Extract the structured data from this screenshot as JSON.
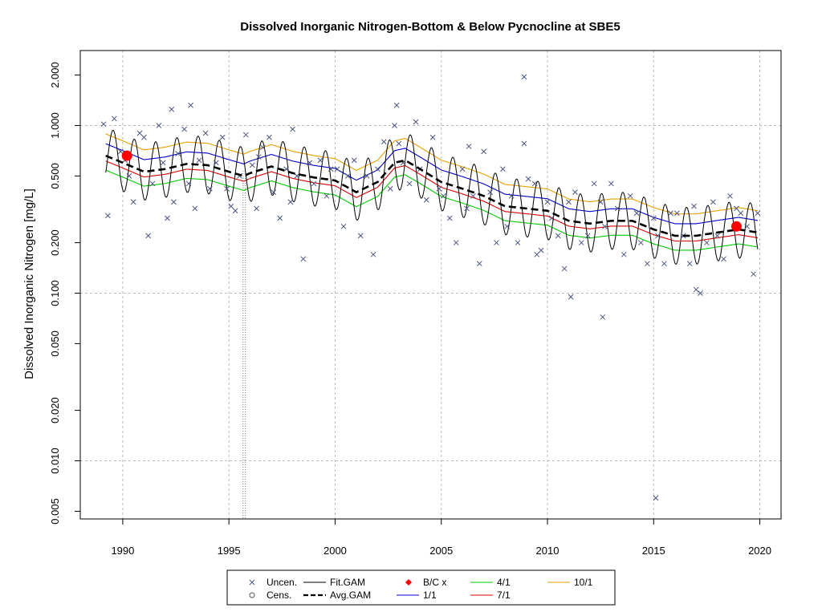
{
  "chart_data": {
    "type": "scatter",
    "title": "Dissolved Inorganic Nitrogen-Bottom & Below Pycnocline at SBE5",
    "xlabel": "",
    "ylabel": "Dissolved Inorganic Nitrogen [mg/L]",
    "xlim": [
      1988,
      2021
    ],
    "ylim": [
      0.0045,
      2.8
    ],
    "y_scale": "log",
    "x_ticks": [
      1990,
      1995,
      2000,
      2005,
      2010,
      2015,
      2020
    ],
    "x_tick_labels": [
      "1990",
      "1995",
      "2000",
      "2005",
      "2010",
      "2015",
      "2020"
    ],
    "y_ticks": [
      0.005,
      0.01,
      0.02,
      0.05,
      0.1,
      0.2,
      0.5,
      1.0,
      2.0
    ],
    "y_tick_labels": [
      "0.005",
      "0.010",
      "0.020",
      "0.050",
      "0.100",
      "0.200",
      "0.500",
      "1.000",
      "2.000"
    ],
    "grid_x": [
      1990,
      1995,
      2000,
      2005,
      2010,
      2015,
      2020
    ],
    "grid_y": [
      0.01,
      0.1,
      1.0
    ],
    "vline_x": 1995.72,
    "colors": {
      "uncensored": "#4d5580",
      "fit_gam": "#000000",
      "avg_gam": "#000000",
      "bc": "#ff0000",
      "d1_1": "#0000cd",
      "d4_1": "#00cc00",
      "d7_1": "#dd0000",
      "d10_1": "#e69f00",
      "grid": "#bbbbbb"
    },
    "avg_gam": {
      "x": [
        1989.2,
        1990,
        1991,
        1992,
        1993,
        1994,
        1995,
        1995.7,
        1996,
        1997,
        1998,
        1999,
        2000,
        2001,
        2002,
        2002.8,
        2003.3,
        2004,
        2005,
        2006,
        2007,
        2008,
        2009,
        2010,
        2011,
        2012,
        2013,
        2014,
        2015,
        2016,
        2017,
        2018,
        2019,
        2019.9
      ],
      "y": [
        0.66,
        0.6,
        0.53,
        0.55,
        0.59,
        0.58,
        0.53,
        0.5,
        0.52,
        0.57,
        0.52,
        0.49,
        0.47,
        0.4,
        0.46,
        0.6,
        0.62,
        0.55,
        0.46,
        0.42,
        0.38,
        0.33,
        0.32,
        0.31,
        0.27,
        0.26,
        0.27,
        0.27,
        0.24,
        0.22,
        0.22,
        0.23,
        0.24,
        0.23
      ]
    },
    "seasonal_offsets": {
      "series": [
        "1/1",
        "4/1",
        "7/1",
        "10/1"
      ],
      "ratio_vs_avg": [
        1.18,
        0.82,
        0.93,
        1.35
      ],
      "fit_gam_amplitude_log10": 0.17
    },
    "bc_points": [
      {
        "x": 1990.2,
        "y": 0.66
      },
      {
        "x": 2018.9,
        "y": 0.25
      }
    ],
    "uncensored": {
      "x": [
        1989.1,
        1989.3,
        1989.6,
        1989.9,
        1990.1,
        1990.3,
        1990.5,
        1990.8,
        1991.0,
        1991.2,
        1991.4,
        1991.7,
        1991.9,
        1992.1,
        1992.4,
        1992.6,
        1992.9,
        1993.1,
        1993.4,
        1993.6,
        1993.9,
        1994.1,
        1994.4,
        1994.7,
        1994.9,
        1995.1,
        1995.3,
        1995.5,
        1995.8,
        1996.1,
        1996.3,
        1996.6,
        1996.9,
        1997.1,
        1997.4,
        1997.7,
        1998.0,
        1998.2,
        1998.5,
        1998.8,
        1999.0,
        1999.3,
        1999.6,
        1999.8,
        2000.1,
        2000.4,
        2000.6,
        2000.9,
        2001.2,
        2001.5,
        2001.8,
        2002.0,
        2002.3,
        2002.6,
        2002.8,
        2003.0,
        2003.2,
        2003.5,
        2003.8,
        2004.0,
        2004.3,
        2004.6,
        2004.9,
        2005.1,
        2005.4,
        2005.7,
        2006.0,
        2006.2,
        2006.5,
        2006.8,
        2007.0,
        2007.3,
        2007.6,
        2007.9,
        2008.1,
        2008.3,
        2008.6,
        2008.9,
        2009.1,
        2009.4,
        2009.7,
        2010.0,
        2010.2,
        2010.5,
        2010.8,
        2011.0,
        2011.3,
        2011.6,
        2011.9,
        2012.2,
        2012.5,
        2012.7,
        2013.0,
        2013.3,
        2013.6,
        2013.9,
        2014.2,
        2014.4,
        2014.7,
        2015.0,
        2015.2,
        2015.5,
        2015.8,
        2016.1,
        2016.4,
        2016.7,
        2016.9,
        2017.2,
        2017.5,
        2017.8,
        2018.0,
        2018.3,
        2018.6,
        2018.9,
        2019.1,
        2019.4,
        2019.7,
        2019.9,
        1992.3,
        1993.2,
        1996.4,
        1997.9,
        2002.9,
        2008.9,
        2011.1,
        2012.6,
        2015.1,
        2017.0,
        2006.3,
        2009.5
      ],
      "y": [
        1.02,
        0.29,
        1.1,
        0.7,
        0.62,
        0.5,
        0.35,
        0.9,
        0.85,
        0.22,
        0.45,
        1.0,
        0.6,
        0.28,
        0.35,
        0.68,
        0.95,
        0.45,
        0.32,
        0.62,
        0.9,
        0.42,
        0.6,
        0.85,
        0.42,
        0.33,
        0.31,
        0.5,
        0.88,
        0.58,
        0.32,
        0.74,
        0.85,
        0.4,
        0.28,
        0.55,
        0.95,
        0.5,
        0.16,
        0.6,
        0.45,
        0.62,
        0.38,
        0.55,
        0.55,
        0.25,
        0.5,
        0.62,
        0.22,
        0.5,
        0.17,
        0.55,
        0.8,
        0.42,
        1.0,
        0.78,
        0.6,
        0.45,
        1.05,
        0.55,
        0.36,
        0.85,
        0.42,
        0.38,
        0.28,
        0.2,
        0.55,
        0.32,
        0.38,
        0.15,
        0.7,
        0.4,
        0.2,
        0.55,
        0.25,
        0.38,
        0.2,
        0.78,
        0.48,
        0.45,
        0.18,
        0.35,
        0.28,
        0.22,
        0.14,
        0.35,
        0.4,
        0.2,
        0.22,
        0.45,
        0.35,
        0.25,
        0.45,
        0.32,
        0.17,
        0.38,
        0.3,
        0.2,
        0.15,
        0.28,
        0.22,
        0.15,
        0.3,
        0.3,
        0.22,
        0.15,
        0.33,
        0.1,
        0.2,
        0.35,
        0.22,
        0.16,
        0.38,
        0.32,
        0.3,
        0.25,
        0.13,
        0.3,
        1.25,
        1.32,
        0.65,
        0.35,
        1.32,
        1.95,
        0.095,
        0.072,
        0.006,
        0.105,
        0.75,
        0.17
      ]
    },
    "legend": [
      {
        "symbol": "x",
        "label": "Uncen."
      },
      {
        "symbol": "line",
        "label": "Fit.GAM"
      },
      {
        "symbol": "diamond",
        "label": "B/C x"
      },
      {
        "symbol": "line",
        "label": "4/1"
      },
      {
        "symbol": "line",
        "label": "10/1"
      },
      {
        "symbol": "circle",
        "label": "Cens."
      },
      {
        "symbol": "dash",
        "label": "Avg.GAM"
      },
      {
        "symbol": "line",
        "label": "1/1"
      },
      {
        "symbol": "line",
        "label": "7/1"
      }
    ],
    "legend_position": "bottom"
  }
}
